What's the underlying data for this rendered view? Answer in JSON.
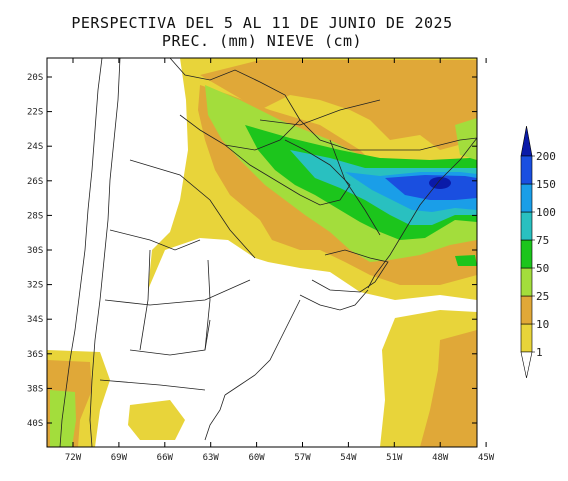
{
  "title_line1": "PERSPECTIVA DEL 5 AL 11 DE JUNIO DE 2025",
  "title_line2": "PREC. (mm) NIEVE (cm)",
  "lat_labels": [
    "20S",
    "22S",
    "24S",
    "26S",
    "28S",
    "30S",
    "32S",
    "34S",
    "36S",
    "38S",
    "40S"
  ],
  "lon_labels": [
    "72W",
    "69W",
    "66W",
    "63W",
    "60W",
    "57W",
    "54W",
    "51W",
    "48W",
    "45W"
  ],
  "legend": {
    "levels": [
      "1",
      "10",
      "25",
      "50",
      "75",
      "100",
      "150",
      "200"
    ],
    "colors": {
      "lt1": "#ffffff",
      "c1_10": "#e8d43a",
      "c10_25": "#e0a838",
      "c25_50": "#a3dd3c",
      "c50_75": "#1cc51c",
      "c75_100": "#29c0c0",
      "c100_150": "#1a9ee8",
      "c150_200": "#1a4fe0",
      "gt200": "#0a1aa8"
    }
  },
  "colors": {
    "border": "#000000",
    "land_lines": "#222222"
  }
}
